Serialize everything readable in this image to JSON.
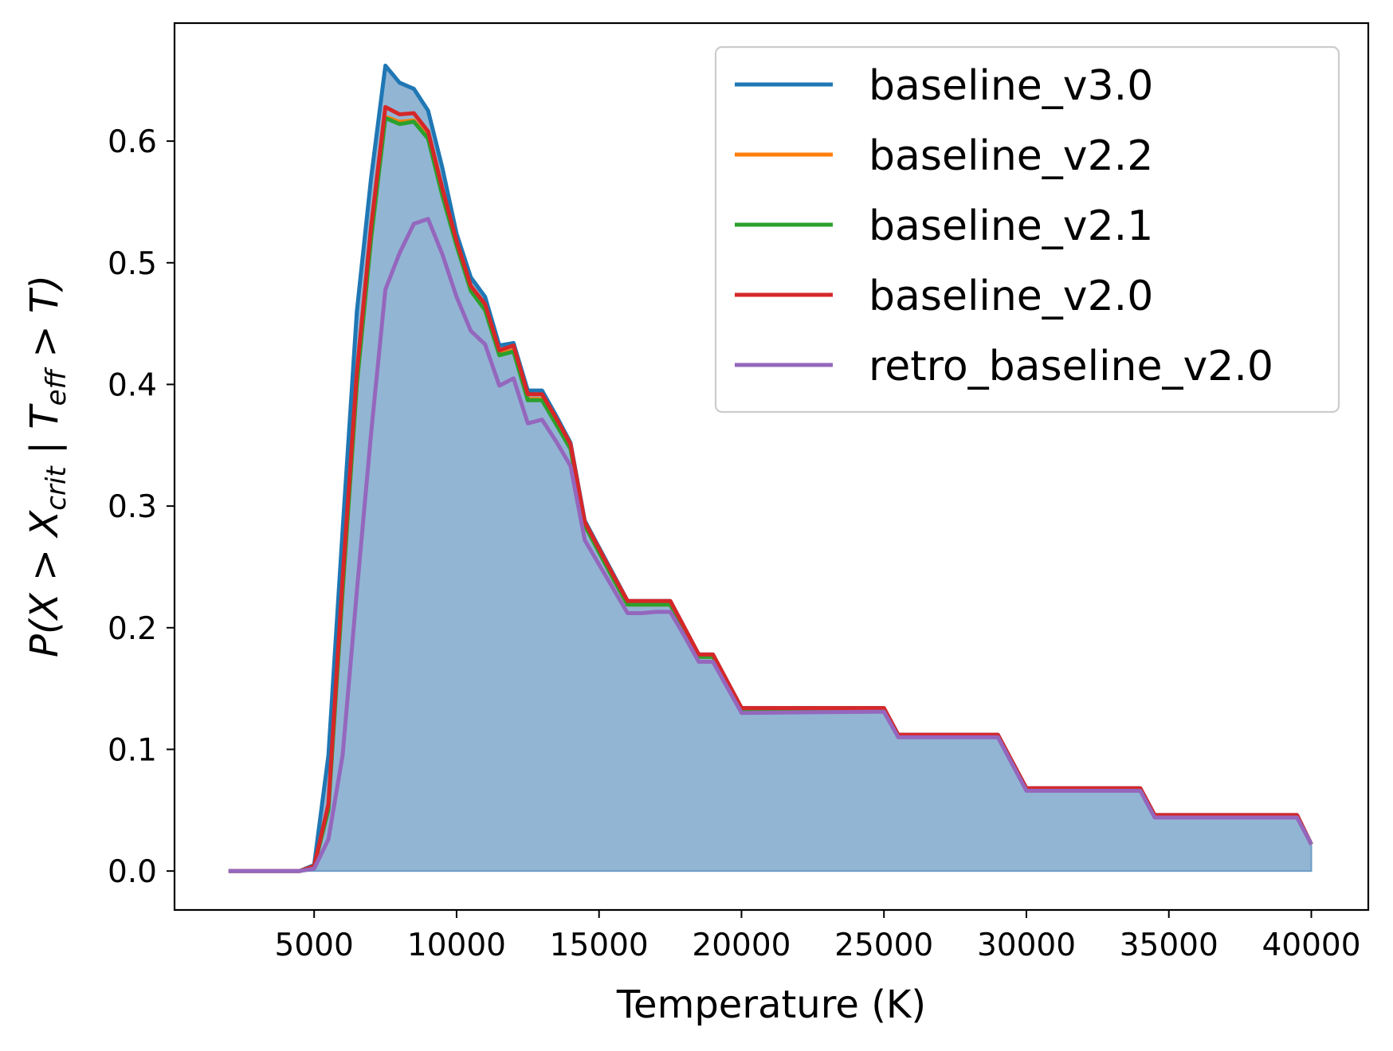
{
  "chart_data": {
    "type": "line",
    "xlabel": "Temperature (K)",
    "ylabel": {
      "prefix": "P(X > X",
      "sub1": "crit",
      "mid": " | T",
      "sub2": "eff",
      "suffix": " > T)"
    },
    "xlim": [
      100,
      42000
    ],
    "ylim": [
      -0.032,
      0.697
    ],
    "xticks": [
      5000,
      10000,
      15000,
      20000,
      25000,
      30000,
      35000,
      40000
    ],
    "xtick_labels": [
      "5000",
      "10000",
      "15000",
      "20000",
      "25000",
      "30000",
      "35000",
      "40000"
    ],
    "yticks": [
      0.0,
      0.1,
      0.2,
      0.3,
      0.4,
      0.5,
      0.6
    ],
    "ytick_labels": [
      "0.0",
      "0.1",
      "0.2",
      "0.3",
      "0.4",
      "0.5",
      "0.6"
    ],
    "grid": false,
    "legend_position": "top-right",
    "fill": {
      "series": "baseline_v3.0",
      "color": "#6d9cc5",
      "opacity": 0.75
    },
    "x": [
      2000,
      4500,
      5000,
      5500,
      6000,
      6500,
      7000,
      7500,
      8000,
      8500,
      9000,
      9500,
      10000,
      10500,
      11000,
      11500,
      12000,
      12500,
      13000,
      13500,
      14000,
      14500,
      15000,
      15500,
      16000,
      16500,
      17000,
      17500,
      18000,
      18500,
      19000,
      19500,
      20000,
      25000,
      25500,
      29000,
      29500,
      30000,
      34000,
      34500,
      35000,
      39500,
      40000
    ],
    "series": [
      {
        "name": "baseline_v3.0",
        "color": "#1f77b4",
        "values": [
          0.0,
          0.0,
          0.005,
          0.095,
          0.28,
          0.46,
          0.57,
          0.662,
          0.648,
          0.643,
          0.625,
          0.578,
          0.524,
          0.488,
          0.472,
          0.432,
          0.434,
          0.395,
          0.395,
          0.374,
          0.352,
          0.288,
          0.266,
          0.244,
          0.222,
          0.222,
          0.222,
          0.222,
          0.2,
          0.178,
          0.178,
          0.156,
          0.134,
          0.134,
          0.112,
          0.112,
          0.09,
          0.068,
          0.068,
          0.046,
          0.046,
          0.046,
          0.022
        ]
      },
      {
        "name": "baseline_v2.2",
        "color": "#ff7f0e",
        "values": [
          0.0,
          0.0,
          0.004,
          0.052,
          0.23,
          0.4,
          0.52,
          0.62,
          0.616,
          0.617,
          0.603,
          0.556,
          0.515,
          0.478,
          0.462,
          0.425,
          0.428,
          0.388,
          0.388,
          0.368,
          0.348,
          0.284,
          0.262,
          0.24,
          0.219,
          0.219,
          0.219,
          0.219,
          0.197,
          0.176,
          0.176,
          0.154,
          0.133,
          0.133,
          0.111,
          0.111,
          0.089,
          0.067,
          0.067,
          0.045,
          0.045,
          0.045,
          0.022
        ]
      },
      {
        "name": "baseline_v2.1",
        "color": "#2ca02c",
        "values": [
          0.0,
          0.0,
          0.004,
          0.05,
          0.23,
          0.4,
          0.52,
          0.619,
          0.614,
          0.616,
          0.602,
          0.555,
          0.514,
          0.477,
          0.461,
          0.424,
          0.427,
          0.387,
          0.387,
          0.367,
          0.347,
          0.284,
          0.262,
          0.24,
          0.219,
          0.219,
          0.219,
          0.219,
          0.197,
          0.176,
          0.176,
          0.154,
          0.133,
          0.133,
          0.111,
          0.111,
          0.089,
          0.067,
          0.067,
          0.045,
          0.045,
          0.045,
          0.022
        ]
      },
      {
        "name": "baseline_v2.0",
        "color": "#d62728",
        "values": [
          0.0,
          0.0,
          0.004,
          0.055,
          0.24,
          0.41,
          0.53,
          0.628,
          0.622,
          0.623,
          0.608,
          0.561,
          0.518,
          0.481,
          0.466,
          0.428,
          0.432,
          0.392,
          0.392,
          0.372,
          0.351,
          0.287,
          0.265,
          0.243,
          0.222,
          0.222,
          0.222,
          0.222,
          0.2,
          0.178,
          0.178,
          0.156,
          0.134,
          0.134,
          0.112,
          0.112,
          0.09,
          0.068,
          0.068,
          0.046,
          0.046,
          0.046,
          0.022
        ]
      },
      {
        "name": "retro_baseline_v2.0",
        "color": "#9467bd",
        "values": [
          0.0,
          0.0,
          0.002,
          0.026,
          0.095,
          0.23,
          0.36,
          0.478,
          0.508,
          0.532,
          0.536,
          0.507,
          0.472,
          0.444,
          0.433,
          0.399,
          0.405,
          0.368,
          0.371,
          0.353,
          0.333,
          0.272,
          0.252,
          0.232,
          0.212,
          0.212,
          0.213,
          0.213,
          0.193,
          0.172,
          0.172,
          0.151,
          0.13,
          0.131,
          0.11,
          0.11,
          0.088,
          0.066,
          0.066,
          0.044,
          0.044,
          0.044,
          0.022
        ]
      }
    ]
  }
}
